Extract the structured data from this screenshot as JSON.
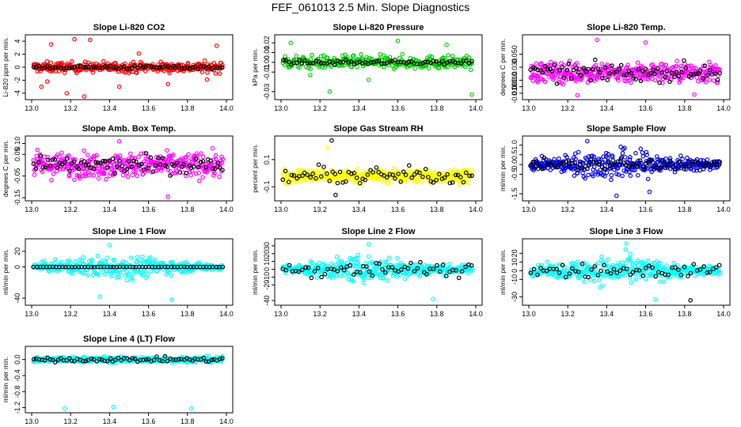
{
  "page": {
    "title": "FEF_061013  2.5 Min. Slope Diagnostics"
  },
  "chart_data": [
    {
      "type": "scatter",
      "title": "Slope Li-820 CO2",
      "xlabel": "",
      "ylabel": "Li-820 ppm per min.",
      "xlim": [
        13.0,
        14.0
      ],
      "ylim": [
        -4.5,
        4.5
      ],
      "xticks": [
        "13.0",
        "13.2",
        "13.4",
        "13.6",
        "13.8",
        "14.0"
      ],
      "yticks": [
        {
          "v": -4,
          "l": "-4"
        },
        {
          "v": -2,
          "l": "-2"
        },
        {
          "v": 0,
          "l": "0"
        },
        {
          "v": 2,
          "l": "2"
        },
        {
          "v": 4,
          "l": "4"
        }
      ],
      "series": [
        {
          "color": "#ff0000",
          "noise": 0.7,
          "spread": "uniform",
          "n": 320,
          "outliers": [
            [
              13.05,
              -3.0
            ],
            [
              13.1,
              3.5
            ],
            [
              13.22,
              4.3
            ],
            [
              13.3,
              4.2
            ],
            [
              13.27,
              -4.5
            ],
            [
              13.18,
              -4.0
            ],
            [
              13.45,
              -3.0
            ],
            [
              13.08,
              -2.2
            ],
            [
              13.95,
              3.3
            ],
            [
              13.9,
              -1.9
            ],
            [
              13.55,
              2.1
            ],
            [
              13.7,
              -2.6
            ]
          ]
        },
        {
          "color": "#000000",
          "noise": 0.25,
          "spread": "uniform",
          "n": 70,
          "outliers": []
        }
      ]
    },
    {
      "type": "scatter",
      "title": "Slope Li-820 Pressure",
      "xlabel": "",
      "ylabel": "kPa per min.",
      "xlim": [
        13.0,
        14.0
      ],
      "ylim": [
        -0.035,
        0.025
      ],
      "xticks": [
        "13.0",
        "13.2",
        "13.4",
        "13.6",
        "13.8",
        "14.0"
      ],
      "yticks": [
        {
          "v": -0.03,
          "l": "-0.03"
        },
        {
          "v": -0.01,
          "l": "-0.01"
        },
        {
          "v": 0.0,
          "l": "0.00"
        },
        {
          "v": 0.01,
          "l": "0.01"
        },
        {
          "v": 0.02,
          "l": "0.02"
        }
      ],
      "series": [
        {
          "color": "#00cc00",
          "noise": 0.006,
          "spread": "uniform",
          "n": 300,
          "outliers": [
            [
              13.05,
              0.02
            ],
            [
              13.25,
              -0.03
            ],
            [
              13.98,
              -0.033
            ],
            [
              13.6,
              0.022
            ],
            [
              13.15,
              -0.013
            ],
            [
              13.85,
              0.018
            ],
            [
              13.45,
              -0.018
            ]
          ]
        },
        {
          "color": "#000000",
          "noise": 0.002,
          "spread": "uniform",
          "n": 70,
          "outliers": []
        }
      ]
    },
    {
      "type": "scatter",
      "title": "Slope Li-820 Temp.",
      "xlabel": "",
      "ylabel": "degrees C per min.",
      "xlim": [
        13.0,
        14.0
      ],
      "ylim": [
        -0.015,
        0.075
      ],
      "xticks": [
        "13.0",
        "13.2",
        "13.4",
        "13.6",
        "13.8",
        "14.0"
      ],
      "yticks": [
        {
          "v": -0.01,
          "l": "-0.010"
        },
        {
          "v": 0.0,
          "l": "0.000"
        },
        {
          "v": 0.01,
          "l": "0.010"
        },
        {
          "v": 0.03,
          "l": "0.030"
        },
        {
          "v": 0.05,
          "l": "0.050"
        }
      ],
      "series": [
        {
          "color": "#ff00ff",
          "noise": 0.014,
          "center": 0.022,
          "spread": "uniform",
          "n": 380,
          "outliers": [
            [
              13.35,
              0.072
            ],
            [
              13.6,
              0.068
            ],
            [
              13.25,
              -0.013
            ],
            [
              13.85,
              -0.012
            ]
          ]
        },
        {
          "color": "#000000",
          "noise": 0.012,
          "center": 0.022,
          "spread": "uniform",
          "n": 80,
          "outliers": []
        }
      ]
    },
    {
      "type": "scatter",
      "title": "Slope Amb. Box Temp.",
      "xlabel": "",
      "ylabel": "degrees C per min.",
      "xlim": [
        13.0,
        14.0
      ],
      "ylim": [
        -0.15,
        0.12
      ],
      "xticks": [
        "13.0",
        "13.2",
        "13.4",
        "13.6",
        "13.8",
        "14.0"
      ],
      "yticks": [
        {
          "v": -0.15,
          "l": "-0.15"
        },
        {
          "v": -0.05,
          "l": "-0.05"
        },
        {
          "v": 0.05,
          "l": "0.05"
        },
        {
          "v": 0.1,
          "l": "0.10"
        }
      ],
      "series": [
        {
          "color": "#ff00ff",
          "noise": 0.05,
          "spread": "uniform",
          "n": 380,
          "outliers": [
            [
              13.7,
              -0.145
            ],
            [
              13.45,
              0.11
            ]
          ]
        },
        {
          "color": "#000000",
          "noise": 0.035,
          "spread": "uniform",
          "n": 80,
          "outliers": []
        }
      ]
    },
    {
      "type": "scatter",
      "title": "Slope Gas Stream RH",
      "xlabel": "",
      "ylabel": "percent per min.",
      "xlim": [
        13.0,
        14.0
      ],
      "ylim": [
        -0.18,
        0.25
      ],
      "xticks": [
        "13.0",
        "13.2",
        "13.4",
        "13.6",
        "13.8",
        "14.0"
      ],
      "yticks": [
        {
          "v": -0.1,
          "l": "-0.1"
        },
        {
          "v": 0.1,
          "l": "0.1"
        }
      ],
      "series": [
        {
          "color": "#ffff00",
          "noise": 0.045,
          "center": -0.02,
          "spread": "uniform",
          "n": 380,
          "outliers": [
            [
              13.24,
              0.19
            ]
          ]
        },
        {
          "color": "#000000",
          "noise": 0.055,
          "center": -0.02,
          "spread": "uniform",
          "n": 70,
          "outliers": [
            [
              13.26,
              0.24
            ],
            [
              13.28,
              -0.16
            ]
          ]
        }
      ]
    },
    {
      "type": "scatter",
      "title": "Slope Sample Flow",
      "xlabel": "",
      "ylabel": "ml/min per min.",
      "xlim": [
        13.0,
        14.0
      ],
      "ylim": [
        -1.7,
        1.3
      ],
      "xticks": [
        "13.0",
        "13.2",
        "13.4",
        "13.6",
        "13.8",
        "14.0"
      ],
      "yticks": [
        {
          "v": -1.5,
          "l": "-1.5"
        },
        {
          "v": -0.5,
          "l": "-0.5"
        },
        {
          "v": 0.0,
          "l": "0.0"
        },
        {
          "v": 0.5,
          "l": "0.5"
        },
        {
          "v": 1.0,
          "l": "1.0"
        }
      ],
      "series": [
        {
          "color": "#0000dd",
          "noise": 0.55,
          "spread": "mid",
          "n": 380,
          "outliers": [
            [
              13.45,
              -1.6
            ],
            [
              13.3,
              1.2
            ],
            [
              13.62,
              -1.4
            ]
          ]
        },
        {
          "color": "#000000",
          "noise": 0.25,
          "spread": "uniform",
          "n": 70,
          "outliers": []
        }
      ]
    },
    {
      "type": "scatter",
      "title": "Slope Line 1 Flow",
      "xlabel": "",
      "ylabel": "ml/min per min.",
      "xlim": [
        13.0,
        14.0
      ],
      "ylim": [
        -45,
        32
      ],
      "xticks": [
        "13.0",
        "13.2",
        "13.4",
        "13.6",
        "13.8",
        "14.0"
      ],
      "yticks": [
        {
          "v": -40,
          "l": "-40"
        },
        {
          "v": 0,
          "l": "0"
        },
        {
          "v": 20,
          "l": "20"
        }
      ],
      "series": [
        {
          "color": "#00ffff",
          "noise": 10,
          "spread": "mid",
          "n": 340,
          "outliers": [
            [
              13.4,
              28
            ],
            [
              13.72,
              -42
            ],
            [
              13.35,
              -38
            ]
          ]
        },
        {
          "color": "#000000",
          "noise": 0.2,
          "spread": "uniform",
          "n": 60,
          "outliers": []
        }
      ]
    },
    {
      "type": "scatter",
      "title": "Slope Line 2 Flow",
      "xlabel": "",
      "ylabel": "ml/min per min.",
      "xlim": [
        13.0,
        14.0
      ],
      "ylim": [
        -42,
        35
      ],
      "xticks": [
        "13.0",
        "13.2",
        "13.4",
        "13.6",
        "13.8",
        "14.0"
      ],
      "yticks": [
        {
          "v": -40,
          "l": "-40"
        },
        {
          "v": -20,
          "l": "-20"
        },
        {
          "v": -10,
          "l": "-10"
        },
        {
          "v": 0,
          "l": "0"
        },
        {
          "v": 10,
          "l": "10"
        },
        {
          "v": 20,
          "l": "20"
        },
        {
          "v": 30,
          "l": "30"
        }
      ],
      "series": [
        {
          "color": "#00ffff",
          "noise": 11,
          "spread": "mid",
          "n": 360,
          "outliers": [
            [
              13.78,
              -38
            ],
            [
              13.45,
              32
            ]
          ]
        },
        {
          "color": "#000000",
          "noise": 9,
          "spread": "uniform",
          "n": 60,
          "outliers": []
        }
      ]
    },
    {
      "type": "scatter",
      "title": "Slope Line 3 Flow",
      "xlabel": "",
      "ylabel": "ml/min per min.",
      "xlim": [
        13.0,
        14.0
      ],
      "ylim": [
        -36,
        33
      ],
      "xticks": [
        "13.0",
        "13.2",
        "13.4",
        "13.6",
        "13.8",
        "14.0"
      ],
      "yticks": [
        {
          "v": -30,
          "l": "-30"
        },
        {
          "v": -10,
          "l": "-10"
        },
        {
          "v": 0,
          "l": "0"
        },
        {
          "v": 10,
          "l": "10"
        },
        {
          "v": 20,
          "l": "20"
        }
      ],
      "series": [
        {
          "color": "#00ffff",
          "noise": 11,
          "spread": "mid",
          "n": 360,
          "outliers": [
            [
              13.5,
              31
            ],
            [
              13.65,
              -33
            ]
          ]
        },
        {
          "color": "#000000",
          "noise": 7,
          "spread": "uniform",
          "n": 60,
          "outliers": [
            [
              13.83,
              -34
            ]
          ]
        }
      ]
    },
    {
      "type": "scatter",
      "title": "Slope Line 4 (LT) Flow",
      "xlabel": "",
      "ylabel": "ml/min per min.",
      "xlim": [
        13.0,
        14.0
      ],
      "ylim": [
        -1.25,
        0.25
      ],
      "xticks": [
        "13.0",
        "13.2",
        "13.4",
        "13.6",
        "13.8",
        "14.0"
      ],
      "yticks": [
        {
          "v": -1.2,
          "l": "-1.2"
        },
        {
          "v": -0.8,
          "l": "-0.8"
        },
        {
          "v": -0.4,
          "l": "-0.4"
        },
        {
          "v": 0.0,
          "l": "0.0"
        }
      ],
      "series": [
        {
          "color": "#00ffff",
          "noise": 0.06,
          "spread": "uniform",
          "n": 380,
          "outliers": [
            [
              13.17,
              -1.22
            ],
            [
              13.42,
              -1.18
            ],
            [
              13.82,
              -1.22
            ]
          ]
        },
        {
          "color": "#000000",
          "noise": 0.05,
          "spread": "uniform",
          "n": 70,
          "outliers": []
        }
      ]
    }
  ]
}
